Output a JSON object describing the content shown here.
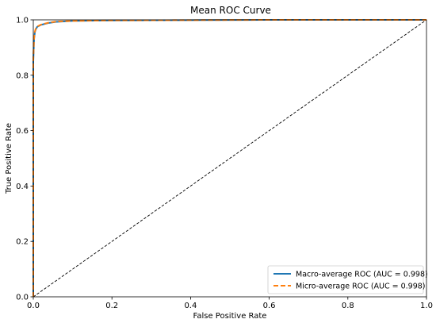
{
  "chart_data": {
    "type": "line",
    "title": "Mean ROC Curve",
    "xlabel": "False Positive Rate",
    "ylabel": "True Positive Rate",
    "xlim": [
      0.0,
      1.0
    ],
    "ylim": [
      0.0,
      1.0
    ],
    "x_ticks": [
      "0.0",
      "0.2",
      "0.4",
      "0.6",
      "0.8",
      "1.0"
    ],
    "y_ticks": [
      "0.0",
      "0.2",
      "0.4",
      "0.6",
      "0.8",
      "1.0"
    ],
    "grid": false,
    "legend_position": "lower-right",
    "series": [
      {
        "name": "Macro-average ROC (AUC = 0.998)",
        "color": "#1f77b4",
        "style": "solid",
        "x": [
          0.0,
          0.0,
          0.002,
          0.004,
          0.006,
          0.01,
          0.02,
          0.04,
          0.06,
          0.1,
          0.2,
          0.4,
          0.6,
          0.8,
          1.0
        ],
        "y": [
          0.0,
          0.85,
          0.93,
          0.955,
          0.965,
          0.975,
          0.982,
          0.989,
          0.993,
          0.996,
          0.998,
          0.999,
          1.0,
          1.0,
          1.0
        ]
      },
      {
        "name": "Micro-average ROC (AUC = 0.998)",
        "color": "#ff7f0e",
        "style": "dashed",
        "x": [
          0.0,
          0.0,
          0.002,
          0.004,
          0.006,
          0.01,
          0.02,
          0.04,
          0.06,
          0.1,
          0.2,
          0.4,
          0.6,
          0.8,
          1.0
        ],
        "y": [
          0.0,
          0.86,
          0.935,
          0.958,
          0.967,
          0.976,
          0.983,
          0.99,
          0.994,
          0.996,
          0.998,
          0.999,
          1.0,
          1.0,
          1.0
        ]
      }
    ],
    "reference_line": {
      "color": "#000000",
      "style": "dashed",
      "x": [
        0.0,
        1.0
      ],
      "y": [
        0.0,
        1.0
      ]
    }
  }
}
